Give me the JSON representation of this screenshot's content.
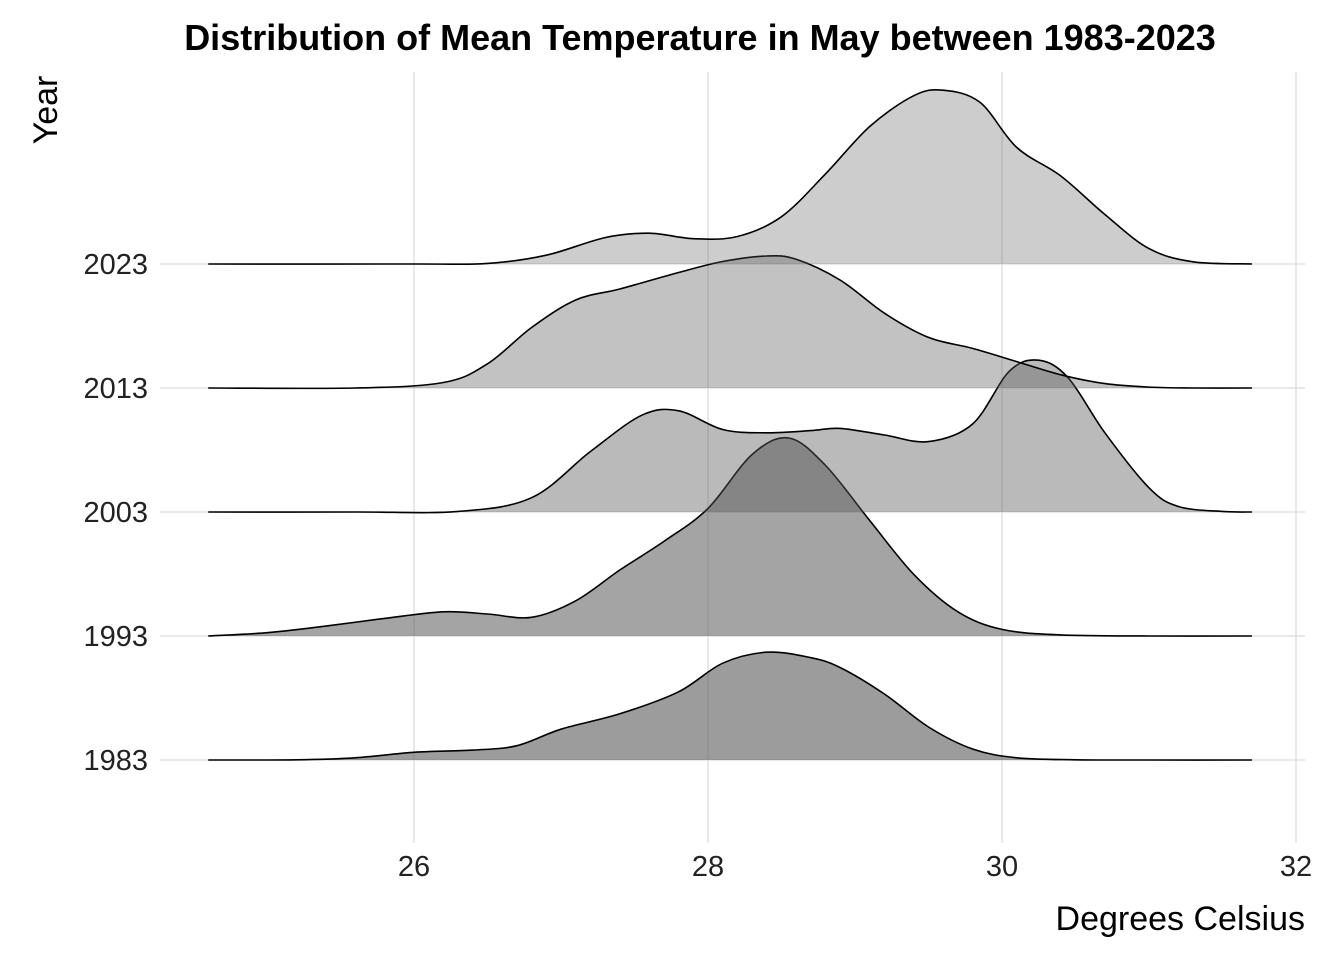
{
  "chart_data": {
    "type": "area",
    "subtype": "ridgeline",
    "title": "Distribution of Mean Temperature in May between 1983-2023",
    "xlabel": "Degrees Celsius",
    "ylabel": "Year",
    "xlim": [
      24.2,
      32
    ],
    "x_ticks": [
      "26",
      "28",
      "30",
      "32"
    ],
    "x_tick_values": [
      26,
      28,
      30,
      32
    ],
    "categories": [
      "1983",
      "1993",
      "2003",
      "2013",
      "2023"
    ],
    "grid": true,
    "legend": "none",
    "fill_color": "#5a5a5a",
    "line_color": "#000000",
    "series": [
      {
        "name": "1983",
        "fill_opacity": 0.6,
        "points": [
          [
            24.6,
            0
          ],
          [
            25.2,
            0.002
          ],
          [
            25.6,
            0.02
          ],
          [
            26.0,
            0.07
          ],
          [
            26.4,
            0.09
          ],
          [
            26.7,
            0.13
          ],
          [
            27.0,
            0.28
          ],
          [
            27.4,
            0.42
          ],
          [
            27.8,
            0.62
          ],
          [
            28.1,
            0.88
          ],
          [
            28.4,
            0.98
          ],
          [
            28.7,
            0.93
          ],
          [
            28.9,
            0.84
          ],
          [
            29.2,
            0.6
          ],
          [
            29.5,
            0.3
          ],
          [
            29.8,
            0.1
          ],
          [
            30.1,
            0.02
          ],
          [
            30.5,
            0.002
          ],
          [
            31.0,
            0
          ],
          [
            31.7,
            0
          ]
        ]
      },
      {
        "name": "1993",
        "fill_opacity": 0.55,
        "points": [
          [
            24.6,
            0
          ],
          [
            25.0,
            0.03
          ],
          [
            25.4,
            0.09
          ],
          [
            25.8,
            0.16
          ],
          [
            26.2,
            0.22
          ],
          [
            26.5,
            0.2
          ],
          [
            26.8,
            0.17
          ],
          [
            27.1,
            0.32
          ],
          [
            27.4,
            0.6
          ],
          [
            27.7,
            0.86
          ],
          [
            28.0,
            1.16
          ],
          [
            28.3,
            1.65
          ],
          [
            28.55,
            1.8
          ],
          [
            28.8,
            1.55
          ],
          [
            29.1,
            1.05
          ],
          [
            29.4,
            0.56
          ],
          [
            29.7,
            0.22
          ],
          [
            30.0,
            0.06
          ],
          [
            30.4,
            0.01
          ],
          [
            31.0,
            0
          ],
          [
            31.7,
            0
          ]
        ]
      },
      {
        "name": "2003",
        "fill_opacity": 0.42,
        "points": [
          [
            24.6,
            0
          ],
          [
            25.6,
            0
          ],
          [
            26.3,
            0.005
          ],
          [
            26.8,
            0.13
          ],
          [
            27.2,
            0.55
          ],
          [
            27.55,
            0.88
          ],
          [
            27.8,
            0.92
          ],
          [
            28.1,
            0.75
          ],
          [
            28.4,
            0.72
          ],
          [
            28.7,
            0.74
          ],
          [
            28.9,
            0.76
          ],
          [
            29.2,
            0.7
          ],
          [
            29.5,
            0.64
          ],
          [
            29.8,
            0.8
          ],
          [
            30.05,
            1.28
          ],
          [
            30.25,
            1.38
          ],
          [
            30.45,
            1.22
          ],
          [
            30.7,
            0.72
          ],
          [
            31.0,
            0.22
          ],
          [
            31.2,
            0.05
          ],
          [
            31.5,
            0.005
          ],
          [
            31.7,
            0
          ]
        ]
      },
      {
        "name": "2013",
        "fill_opacity": 0.37,
        "points": [
          [
            24.6,
            0
          ],
          [
            25.6,
            0
          ],
          [
            26.2,
            0.05
          ],
          [
            26.5,
            0.22
          ],
          [
            26.8,
            0.55
          ],
          [
            27.1,
            0.8
          ],
          [
            27.4,
            0.9
          ],
          [
            27.8,
            1.05
          ],
          [
            28.1,
            1.15
          ],
          [
            28.4,
            1.2
          ],
          [
            28.6,
            1.17
          ],
          [
            28.9,
            0.98
          ],
          [
            29.2,
            0.68
          ],
          [
            29.5,
            0.46
          ],
          [
            29.8,
            0.36
          ],
          [
            30.1,
            0.24
          ],
          [
            30.4,
            0.12
          ],
          [
            30.7,
            0.04
          ],
          [
            31.0,
            0.008
          ],
          [
            31.3,
            0
          ],
          [
            31.7,
            0
          ]
        ]
      },
      {
        "name": "2023",
        "fill_opacity": 0.3,
        "points": [
          [
            24.6,
            0
          ],
          [
            26.0,
            0
          ],
          [
            26.5,
            0.005
          ],
          [
            26.9,
            0.08
          ],
          [
            27.3,
            0.24
          ],
          [
            27.6,
            0.28
          ],
          [
            27.9,
            0.23
          ],
          [
            28.2,
            0.25
          ],
          [
            28.5,
            0.43
          ],
          [
            28.8,
            0.82
          ],
          [
            29.1,
            1.25
          ],
          [
            29.4,
            1.53
          ],
          [
            29.6,
            1.58
          ],
          [
            29.85,
            1.47
          ],
          [
            30.1,
            1.06
          ],
          [
            30.4,
            0.8
          ],
          [
            30.7,
            0.45
          ],
          [
            31.0,
            0.14
          ],
          [
            31.3,
            0.02
          ],
          [
            31.7,
            0
          ]
        ]
      }
    ]
  }
}
